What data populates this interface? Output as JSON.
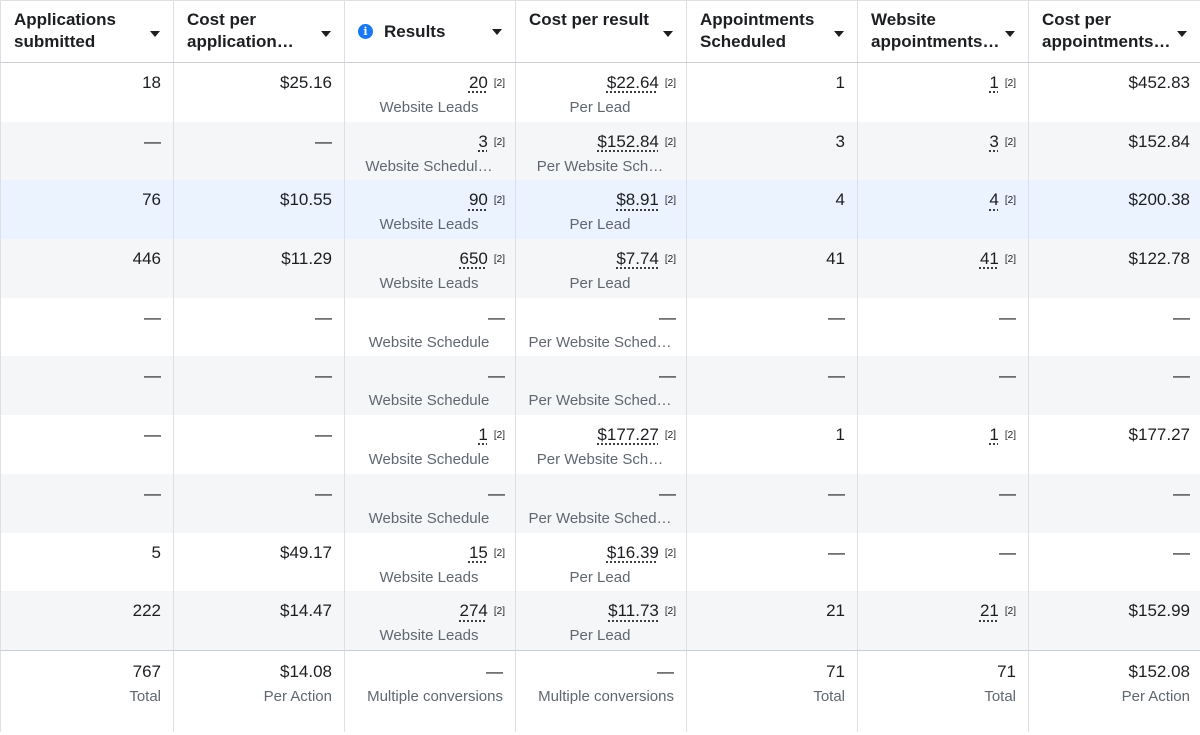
{
  "headers": [
    {
      "label": "Applications submitted"
    },
    {
      "label": "Cost per application submitted"
    },
    {
      "label": "Results"
    },
    {
      "label": "Cost per result"
    },
    {
      "label": "Appointments Scheduled"
    },
    {
      "label": "Website appointments scheduled"
    },
    {
      "label": "Cost per appointments scheduled"
    }
  ],
  "footnote_marker": "[2]",
  "rows": [
    {
      "apps": "18",
      "cpa": "$25.16",
      "results": "20",
      "results_sub": "Website Leads",
      "cpr": "$22.64",
      "cpr_sub": "Per Lead",
      "appt": "1",
      "web_appt": "1",
      "cost_appt": "$452.83"
    },
    {
      "apps": "—",
      "cpa": "—",
      "results": "3",
      "results_sub": "Website Schedul…",
      "cpr": "$152.84",
      "cpr_sub": "Per Website Sch…",
      "appt": "3",
      "web_appt": "3",
      "cost_appt": "$152.84"
    },
    {
      "apps": "76",
      "cpa": "$10.55",
      "results": "90",
      "results_sub": "Website Leads",
      "cpr": "$8.91",
      "cpr_sub": "Per Lead",
      "appt": "4",
      "web_appt": "4",
      "cost_appt": "$200.38"
    },
    {
      "apps": "446",
      "cpa": "$11.29",
      "results": "650",
      "results_sub": "Website Leads",
      "cpr": "$7.74",
      "cpr_sub": "Per Lead",
      "appt": "41",
      "web_appt": "41",
      "cost_appt": "$122.78"
    },
    {
      "apps": "—",
      "cpa": "—",
      "results": "—",
      "results_sub": "Website Schedule",
      "cpr": "—",
      "cpr_sub": "Per Website Sched…",
      "appt": "—",
      "web_appt": "—",
      "cost_appt": "—"
    },
    {
      "apps": "—",
      "cpa": "—",
      "results": "—",
      "results_sub": "Website Schedule",
      "cpr": "—",
      "cpr_sub": "Per Website Sched…",
      "appt": "—",
      "web_appt": "—",
      "cost_appt": "—"
    },
    {
      "apps": "—",
      "cpa": "—",
      "results": "1",
      "results_sub": "Website Schedule",
      "cpr": "$177.27",
      "cpr_sub": "Per Website Sch…",
      "appt": "1",
      "web_appt": "1",
      "cost_appt": "$177.27"
    },
    {
      "apps": "—",
      "cpa": "—",
      "results": "—",
      "results_sub": "Website Schedule",
      "cpr": "—",
      "cpr_sub": "Per Website Sched…",
      "appt": "—",
      "web_appt": "—",
      "cost_appt": "—"
    },
    {
      "apps": "5",
      "cpa": "$49.17",
      "results": "15",
      "results_sub": "Website Leads",
      "cpr": "$16.39",
      "cpr_sub": "Per Lead",
      "appt": "—",
      "web_appt": "—",
      "cost_appt": "—"
    },
    {
      "apps": "222",
      "cpa": "$14.47",
      "results": "274",
      "results_sub": "Website Leads",
      "cpr": "$11.73",
      "cpr_sub": "Per Lead",
      "appt": "21",
      "web_appt": "21",
      "cost_appt": "$152.99"
    }
  ],
  "totals": {
    "apps": "767",
    "apps_sub": "Total",
    "cpa": "$14.08",
    "cpa_sub": "Per Action",
    "results": "—",
    "results_sub": "Multiple conversions",
    "cpr": "—",
    "cpr_sub": "Multiple conversions",
    "appt": "71",
    "appt_sub": "Total",
    "web_appt": "71",
    "web_appt_sub": "Total",
    "cost_appt": "$152.08",
    "cost_appt_sub": "Per Action"
  }
}
